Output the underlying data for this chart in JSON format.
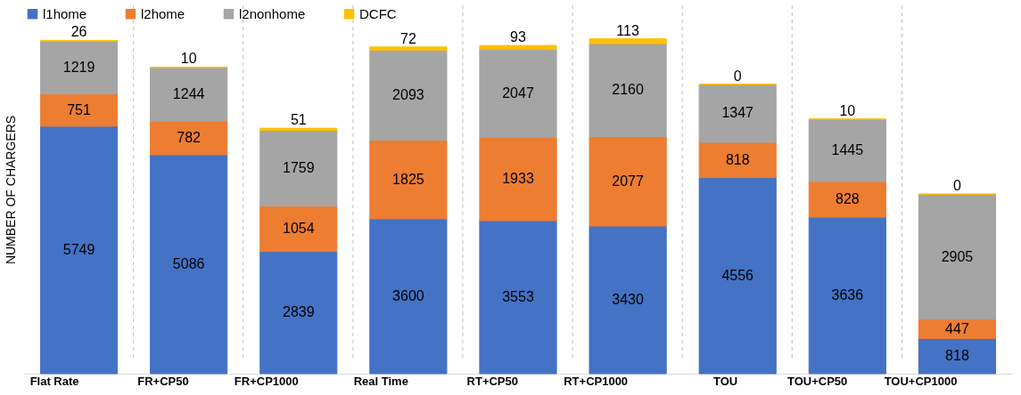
{
  "chart_data": {
    "type": "bar",
    "stacked": true,
    "ylabel": "NUMBER OF CHARGERS",
    "categories": [
      "Flat Rate",
      "FR+CP50",
      "FR+CP1000",
      "Real Time",
      "RT+CP50",
      "RT+CP1000",
      "TOU",
      "TOU+CP50",
      "TOU+CP1000"
    ],
    "series": [
      {
        "name": "l1home",
        "color": "#4472c4",
        "values": [
          5749,
          5086,
          2839,
          3600,
          3553,
          3430,
          4556,
          3636,
          818
        ]
      },
      {
        "name": "l2home",
        "color": "#ed7d31",
        "values": [
          751,
          782,
          1054,
          1825,
          1933,
          2077,
          818,
          828,
          447
        ]
      },
      {
        "name": "l2nonhome",
        "color": "#a5a5a5",
        "values": [
          1219,
          1244,
          1759,
          2093,
          2047,
          2160,
          1347,
          1445,
          2905
        ]
      },
      {
        "name": "DCFC",
        "color": "#ffc000",
        "values": [
          26,
          10,
          51,
          72,
          93,
          113,
          0,
          10,
          0
        ]
      }
    ],
    "data_labels": true,
    "legend": "top left",
    "grid": "x"
  }
}
